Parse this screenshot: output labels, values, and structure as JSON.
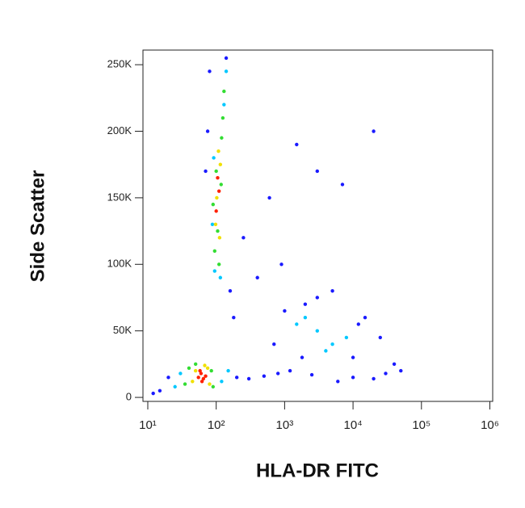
{
  "chart_data": {
    "type": "scatter",
    "x_label": "HLA-DR FITC",
    "y_label": "Side Scatter",
    "log_x": true,
    "xlim": [
      8.5,
      1100000
    ],
    "xticks": [
      {
        "value": 10,
        "label": "10¹"
      },
      {
        "value": 100,
        "label": "10²"
      },
      {
        "value": 1000,
        "label": "10³"
      },
      {
        "value": 10000,
        "label": "10⁴"
      },
      {
        "value": 100000,
        "label": "10⁵"
      },
      {
        "value": 1000000,
        "label": "10⁶"
      }
    ],
    "ylim": [
      -3000,
      261000
    ],
    "yticks": [
      0,
      {
        "value": 50000,
        "label": "50K"
      },
      {
        "value": 100000,
        "label": "100K"
      },
      {
        "value": 150000,
        "label": "150K"
      },
      {
        "value": 200000,
        "label": "200K"
      },
      {
        "value": 250000,
        "label": "250K"
      }
    ],
    "series": [
      {
        "color": "#1a1aff",
        "x": [
          15,
          20,
          12,
          200,
          300,
          500,
          800,
          1200,
          2500,
          6000,
          10000,
          20000,
          30000,
          15000,
          3000,
          1000,
          700,
          400,
          1800,
          900,
          5000,
          25000,
          40000,
          12000,
          80,
          75,
          140,
          160,
          70,
          180,
          250,
          600,
          1500,
          3000,
          7000,
          20000,
          2000,
          10000,
          50000
        ],
        "values": [
          5000,
          15000,
          3000,
          15000,
          14000,
          16000,
          18000,
          20000,
          17000,
          12000,
          15000,
          14000,
          18000,
          60000,
          75000,
          65000,
          40000,
          90000,
          30000,
          100000,
          80000,
          45000,
          25000,
          55000,
          245000,
          200000,
          255000,
          80000,
          170000,
          60000,
          120000,
          150000,
          190000,
          170000,
          160000,
          200000,
          70000,
          30000,
          20000
        ]
      },
      {
        "color": "#00c8ff",
        "x": [
          25,
          30,
          120,
          150,
          95,
          88,
          130,
          140,
          115,
          92,
          1500,
          3000,
          5000,
          2000,
          8000,
          4000
        ],
        "values": [
          8000,
          18000,
          12000,
          20000,
          95000,
          130000,
          220000,
          245000,
          90000,
          180000,
          55000,
          50000,
          40000,
          60000,
          45000,
          35000
        ]
      },
      {
        "color": "#33dd33",
        "x": [
          35,
          40,
          90,
          85,
          50,
          95,
          120,
          125,
          110,
          100,
          90,
          118,
          105,
          130
        ],
        "values": [
          10000,
          22000,
          8000,
          20000,
          25000,
          110000,
          195000,
          210000,
          100000,
          170000,
          145000,
          160000,
          125000,
          230000
        ]
      },
      {
        "color": "#f0e000",
        "x": [
          45,
          50,
          75,
          80,
          68,
          98,
          115,
          108,
          102,
          112
        ],
        "values": [
          12000,
          20000,
          22000,
          10000,
          24000,
          130000,
          175000,
          185000,
          150000,
          120000
        ]
      },
      {
        "color": "#ff2000",
        "x": [
          55,
          60,
          65,
          70,
          58,
          62,
          100,
          110,
          105
        ],
        "values": [
          15000,
          18000,
          14000,
          16000,
          20000,
          12000,
          140000,
          155000,
          165000
        ]
      }
    ]
  }
}
